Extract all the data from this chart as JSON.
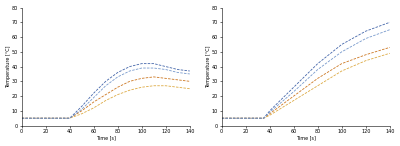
{
  "left": {
    "xlabel": "Time [s]",
    "ylabel": "Temperature [°C]",
    "xlim": [
      0,
      140
    ],
    "ylim": [
      0,
      80
    ],
    "xticks": [
      0,
      20,
      40,
      60,
      80,
      100,
      120,
      140
    ],
    "yticks": [
      0,
      10,
      20,
      30,
      40,
      50,
      60,
      70,
      80
    ],
    "series": [
      {
        "color": "#cc7722",
        "x": [
          0,
          40,
          50,
          60,
          70,
          80,
          90,
          100,
          110,
          120,
          130,
          140
        ],
        "y": [
          5,
          5,
          10,
          16,
          21,
          26,
          30,
          32,
          33,
          32,
          31,
          30
        ]
      },
      {
        "color": "#ddaa44",
        "x": [
          0,
          40,
          50,
          60,
          70,
          80,
          90,
          100,
          110,
          120,
          130,
          140
        ],
        "y": [
          5,
          5,
          8,
          12,
          17,
          21,
          24,
          26,
          27,
          27,
          26,
          25
        ]
      },
      {
        "color": "#4466aa",
        "x": [
          0,
          40,
          50,
          60,
          70,
          80,
          90,
          100,
          110,
          120,
          130,
          140
        ],
        "y": [
          5,
          5,
          13,
          22,
          30,
          36,
          40,
          42,
          42,
          40,
          38,
          37
        ]
      },
      {
        "color": "#7799cc",
        "x": [
          0,
          40,
          50,
          60,
          70,
          80,
          90,
          100,
          110,
          120,
          130,
          140
        ],
        "y": [
          5,
          5,
          11,
          19,
          27,
          33,
          37,
          39,
          39,
          38,
          36,
          35
        ]
      }
    ]
  },
  "right": {
    "xlabel": "Time [s]",
    "ylabel": "Temperature [°C]",
    "xlim": [
      0,
      140
    ],
    "ylim": [
      0,
      80
    ],
    "xticks": [
      0,
      20,
      40,
      60,
      80,
      100,
      120,
      140
    ],
    "yticks": [
      0,
      10,
      20,
      30,
      40,
      50,
      60,
      70,
      80
    ],
    "series": [
      {
        "color": "#cc7722",
        "x": [
          0,
          35,
          40,
          60,
          80,
          100,
          120,
          140
        ],
        "y": [
          5,
          5,
          8,
          20,
          32,
          42,
          48,
          53
        ]
      },
      {
        "color": "#ddaa44",
        "x": [
          0,
          35,
          40,
          60,
          80,
          100,
          120,
          140
        ],
        "y": [
          5,
          5,
          7,
          17,
          27,
          37,
          44,
          49
        ]
      },
      {
        "color": "#4466aa",
        "x": [
          0,
          35,
          40,
          60,
          80,
          100,
          120,
          140
        ],
        "y": [
          5,
          5,
          10,
          26,
          42,
          55,
          64,
          70
        ]
      },
      {
        "color": "#7799cc",
        "x": [
          0,
          35,
          40,
          60,
          80,
          100,
          120,
          140
        ],
        "y": [
          5,
          5,
          9,
          23,
          38,
          50,
          59,
          65
        ]
      }
    ]
  }
}
